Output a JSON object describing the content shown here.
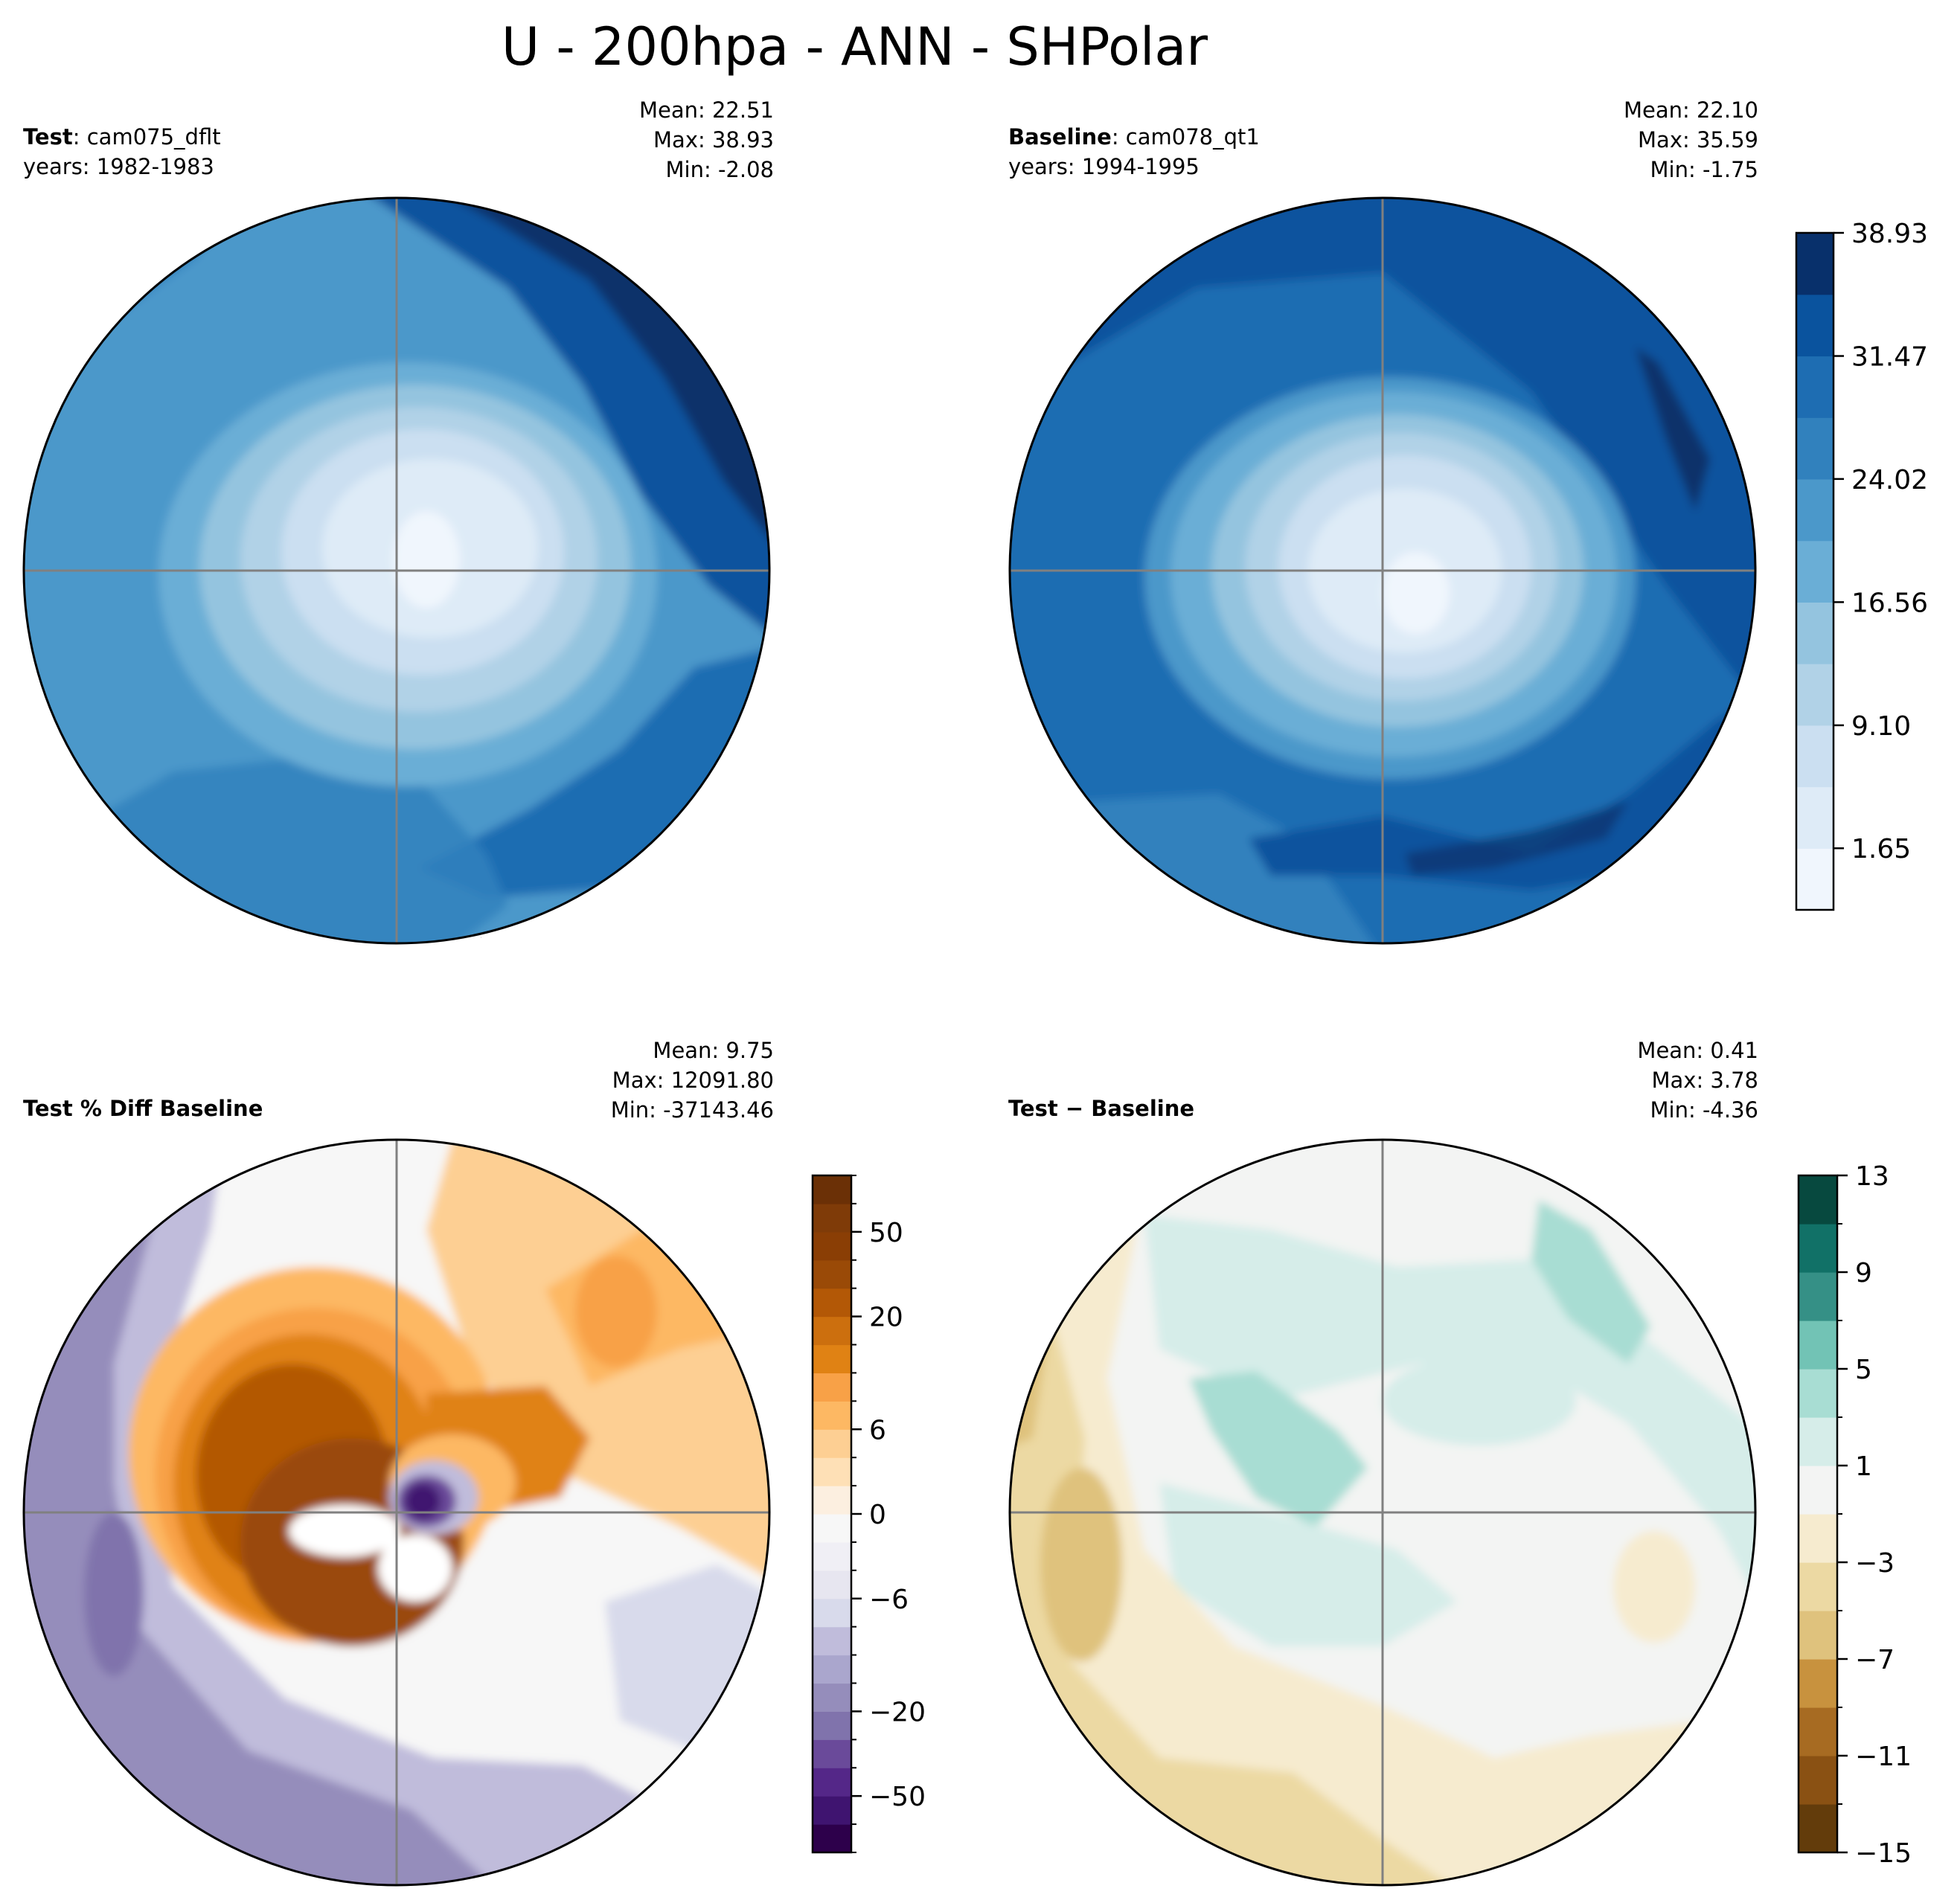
{
  "suptitle": "U - 200hpa - ANN - SHPolar",
  "colors": {
    "coastline": "#000000",
    "gridline": "#808080",
    "frame": "#000000"
  },
  "panels": {
    "test": {
      "label_bold": "Test",
      "label_rest": ": cam075_dflt",
      "years": "years: 1982-1983",
      "stats": {
        "mean": "Mean: 22.51",
        "max": "Max: 38.93",
        "min": "Min: -2.08"
      }
    },
    "baseline": {
      "label_bold": "Baseline",
      "label_rest": ": cam078_qt1",
      "years": "years: 1994-1995",
      "stats": {
        "mean": "Mean: 22.10",
        "max": "Max: 35.59",
        "min": "Min: -1.75"
      }
    },
    "pctdiff": {
      "label_bold": "Test % Diff Baseline",
      "stats": {
        "mean": "Mean:  9.75",
        "max": "Max: 12091.80",
        "min": "Min: -37143.46"
      }
    },
    "diff": {
      "label_bold": "Test − Baseline",
      "stats": {
        "mean": "Mean:  0.41",
        "max": "Max:  3.78",
        "min": "Min: -4.36"
      }
    }
  },
  "chart_data": [
    {
      "type": "filled-contour-map",
      "projection": "south-polar-stereographic",
      "name": "Test",
      "field": "U 200hPa annual mean",
      "mean": 22.51,
      "max": 38.93,
      "min": -2.08,
      "colormap": "Blues",
      "description_levels": "shared colorbar with Baseline"
    },
    {
      "type": "filled-contour-map",
      "projection": "south-polar-stereographic",
      "name": "Baseline",
      "mean": 22.1,
      "max": 35.59,
      "min": -1.75,
      "colormap": "Blues",
      "colorbar": {
        "ticks": [
          "1.65",
          "9.10",
          "16.56",
          "24.02",
          "31.47",
          "38.93"
        ],
        "tick_values": [
          1.65,
          9.1,
          16.56,
          24.02,
          31.47,
          38.93
        ],
        "range": [
          -2.08,
          38.93
        ],
        "colors": [
          "#f0f6fd",
          "#deebf7",
          "#cbdff1",
          "#b1d2e7",
          "#94c4df",
          "#6aaed6",
          "#4b98ca",
          "#3181bd",
          "#1e6db2",
          "#0a539e",
          "#08306b"
        ]
      }
    },
    {
      "type": "filled-contour-map",
      "projection": "south-polar-stereographic",
      "name": "Test % Diff Baseline",
      "mean": 9.75,
      "max": 12091.8,
      "min": -37143.46,
      "colormap": "PuOr_r",
      "colorbar": {
        "ticks": [
          "−50",
          "−20",
          "−6",
          "0",
          "6",
          "20",
          "50"
        ],
        "tick_values": [
          -50,
          -20,
          -6,
          0,
          6,
          20,
          50
        ],
        "levels": [
          -100,
          -70,
          -50,
          -40,
          -30,
          -20,
          -15,
          -10,
          -8,
          -6,
          -4,
          -2,
          0,
          2,
          4,
          6,
          8,
          10,
          15,
          20,
          30,
          40,
          50,
          70,
          100
        ],
        "colors": [
          "#2d004b",
          "#3f1470",
          "#542788",
          "#6a4a9a",
          "#8073ac",
          "#958dbb",
          "#aaa6cd",
          "#c0bcdb",
          "#d8daeb",
          "#e7e6f0",
          "#f0eff5",
          "#f7f7f7",
          "#fcefe0",
          "#fee0b6",
          "#fdcf93",
          "#fdb863",
          "#f8a147",
          "#e08214",
          "#cc6f0e",
          "#b35806",
          "#9a4a07",
          "#8a3e05",
          "#7f3b08",
          "#6b3006"
        ]
      }
    },
    {
      "type": "filled-contour-map",
      "projection": "south-polar-stereographic",
      "name": "Test − Baseline",
      "mean": 0.41,
      "max": 3.78,
      "min": -4.36,
      "colormap": "BrBG",
      "colorbar": {
        "ticks": [
          "−15",
          "−11",
          "−7",
          "−3",
          "1",
          "5",
          "9",
          "13"
        ],
        "tick_values": [
          -15,
          -11,
          -7,
          -3,
          1,
          5,
          9,
          13
        ],
        "levels": [
          -15,
          -13,
          -11,
          -9,
          -7,
          -5,
          -3,
          -1,
          1,
          3,
          5,
          7,
          9,
          11,
          13
        ],
        "colors": [
          "#633c0b",
          "#8a5113",
          "#a76b22",
          "#c8923e",
          "#dfc27d",
          "#ecd9a3",
          "#f6ebcf",
          "#f3f4f3",
          "#d6ede9",
          "#a8ddd3",
          "#72c3b5",
          "#359086",
          "#117167",
          "#07493f"
        ]
      }
    }
  ]
}
